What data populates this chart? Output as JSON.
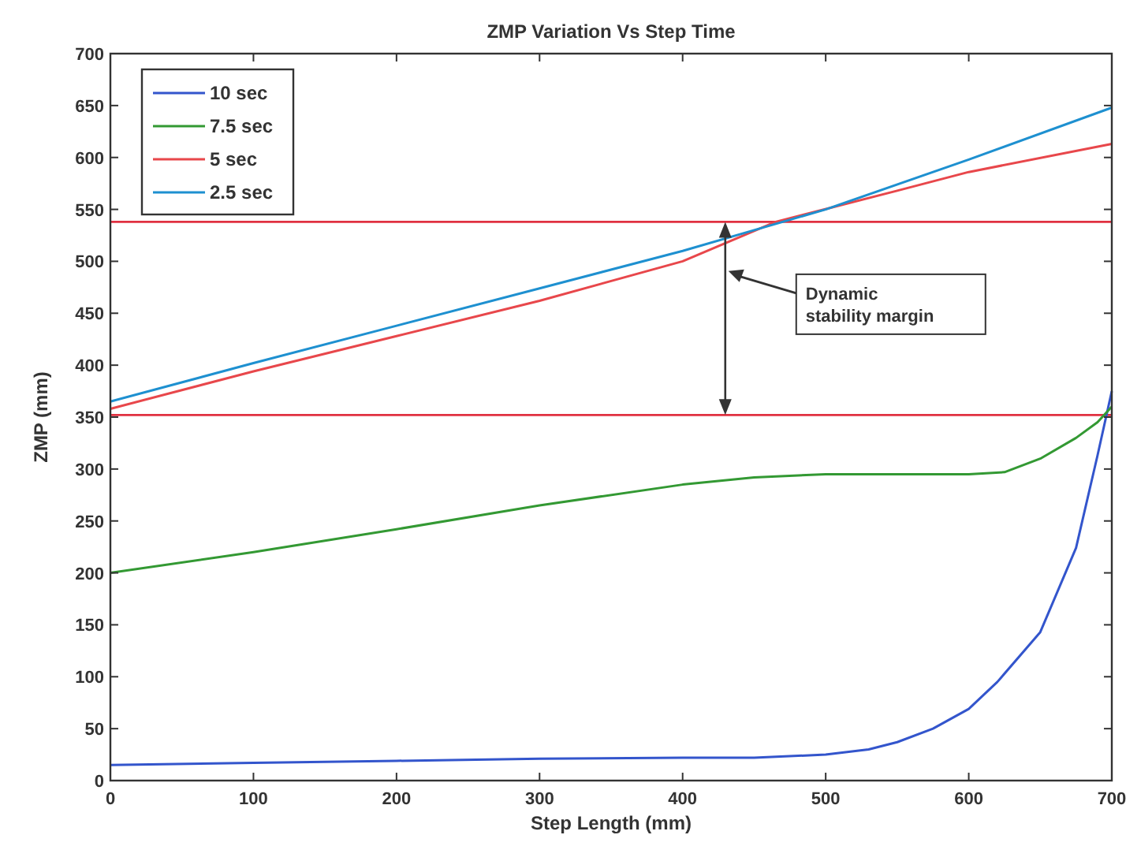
{
  "chart_data": {
    "type": "line",
    "title": "ZMP Variation Vs Step Time",
    "xlabel": "Step Length (mm)",
    "ylabel": "ZMP (mm)",
    "xlim": [
      0,
      700
    ],
    "xticks": [
      0,
      100,
      200,
      300,
      400,
      500,
      600,
      700
    ],
    "ylim": [
      0,
      700
    ],
    "yticks": [
      0,
      50,
      100,
      150,
      200,
      250,
      300,
      350,
      400,
      450,
      500,
      550,
      600,
      650,
      700
    ],
    "grid": false,
    "legend": "top left",
    "line_style": "solid",
    "series": [
      {
        "name": "10 sec",
        "color": "#3355cc",
        "x": [
          0,
          100,
          200,
          300,
          400,
          450,
          500,
          530,
          550,
          575,
          600,
          620,
          650,
          675,
          690,
          700
        ],
        "values": [
          15,
          17,
          19,
          21,
          22,
          22,
          25,
          30,
          37,
          50,
          69,
          95,
          143,
          224,
          313,
          375
        ]
      },
      {
        "name": "7.5 sec",
        "color": "#339933",
        "x": [
          0,
          100,
          200,
          300,
          400,
          450,
          500,
          550,
          600,
          625,
          650,
          675,
          690,
          700
        ],
        "values": [
          200,
          220,
          242,
          265,
          285,
          292,
          295,
          295,
          295,
          297,
          310,
          330,
          345,
          360
        ]
      },
      {
        "name": "5 sec",
        "color": "#e8474b",
        "x": [
          0,
          100,
          200,
          300,
          400,
          465,
          550,
          600,
          700
        ],
        "values": [
          358,
          394,
          428,
          462,
          500,
          538,
          568,
          586,
          613
        ]
      },
      {
        "name": "2.5 sec",
        "color": "#1e90d0",
        "x": [
          0,
          100,
          200,
          300,
          400,
          450,
          500,
          600,
          700
        ],
        "values": [
          365,
          402,
          438,
          474,
          510,
          530,
          550,
          598,
          648
        ]
      }
    ],
    "ref_lines": [
      {
        "axis": "y",
        "value": 538,
        "color": "#e03040"
      },
      {
        "axis": "y",
        "value": 352,
        "color": "#e03040"
      }
    ],
    "annotations": [
      "Dynamic\nstability margin"
    ]
  }
}
